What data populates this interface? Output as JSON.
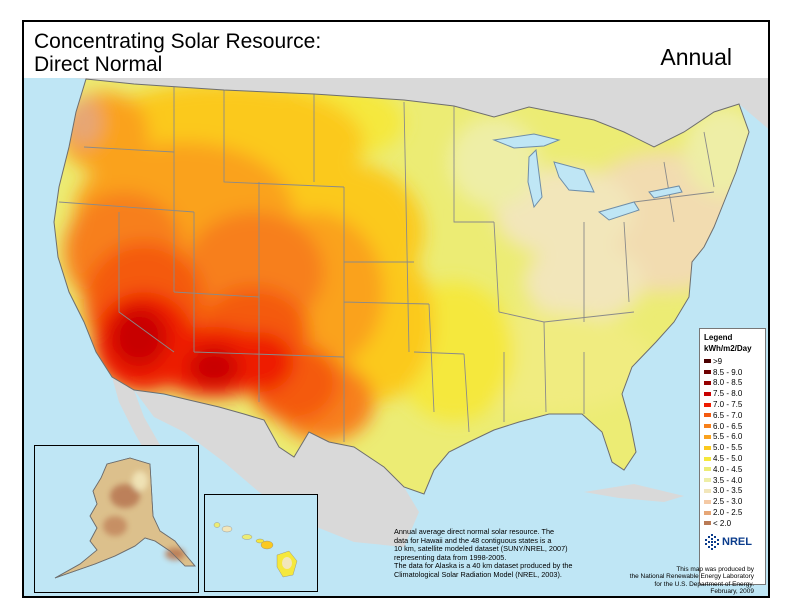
{
  "title": {
    "line1": "Concentrating Solar Resource:",
    "line2": "Direct Normal"
  },
  "period": "Annual",
  "colors": {
    "ocean": "#bfe6f5",
    "land_outside": "#d9d9d9",
    "state_border": "#8a8a8a"
  },
  "legend": {
    "title": "Legend",
    "unit": "kWh/m2/Day",
    "items": [
      {
        "label": ">9",
        "color": "#4a0000"
      },
      {
        "label": "8.5 - 9.0",
        "color": "#6e0000"
      },
      {
        "label": "8.0 - 8.5",
        "color": "#960000"
      },
      {
        "label": "7.5 - 8.0",
        "color": "#c80000"
      },
      {
        "label": "7.0 - 7.5",
        "color": "#ee1c00"
      },
      {
        "label": "6.5 - 7.0",
        "color": "#f45a10"
      },
      {
        "label": "6.0 - 6.5",
        "color": "#f77f1a"
      },
      {
        "label": "5.5 - 6.0",
        "color": "#faa21e"
      },
      {
        "label": "5.0 - 5.5",
        "color": "#fbc91f"
      },
      {
        "label": "4.5 - 5.0",
        "color": "#f5e83c"
      },
      {
        "label": "4.0 - 4.5",
        "color": "#ecec74"
      },
      {
        "label": "3.5 - 4.0",
        "color": "#eeeea6"
      },
      {
        "label": "3.0 - 3.5",
        "color": "#f2e6ba"
      },
      {
        "label": "2.5 - 3.0",
        "color": "#f4c9a4"
      },
      {
        "label": "2.0 - 2.5",
        "color": "#e6a676"
      },
      {
        "label": "< 2.0",
        "color": "#b97a55"
      }
    ]
  },
  "notes": {
    "line1": "Annual average direct normal solar resource.  The",
    "line2": "data for Hawaii and the 48 contiguous states is a",
    "line3": "10 km, satellite modeled dataset (SUNY/NREL, 2007)",
    "line4": "representing data from 1998-2005.",
    "line5": "The data for Alaska is a 40 km dataset produced by the",
    "line6": "Climatological Solar Radiation Model (NREL, 2003)."
  },
  "credit": {
    "line1": "This map was produced by",
    "line2": "the National Renewable Energy Laboratory",
    "line3": "for the U.S. Department of Energy.",
    "line4": "February, 2009"
  },
  "logo_text": "NREL"
}
